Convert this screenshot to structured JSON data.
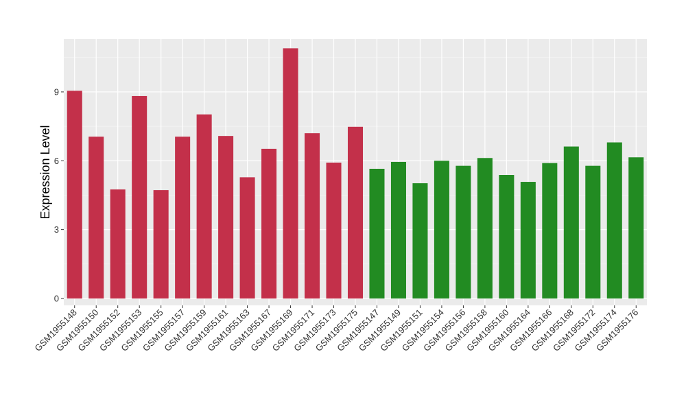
{
  "chart_data": {
    "type": "bar",
    "title": "",
    "xlabel": "",
    "ylabel": "Expression Level",
    "ylim": [
      -0.3,
      11.3
    ],
    "yticks": [
      0,
      3,
      6,
      9
    ],
    "grid": true,
    "legend": "none",
    "panel_background": "#EBEBEB",
    "colors": {
      "group_a": "#C3304A",
      "group_b": "#228B22"
    },
    "categories": [
      "GSM1955148",
      "GSM1955150",
      "GSM1955152",
      "GSM1955153",
      "GSM1955155",
      "GSM1955157",
      "GSM1955159",
      "GSM1955161",
      "GSM1955163",
      "GSM1955167",
      "GSM1955169",
      "GSM1955171",
      "GSM1955173",
      "GSM1955175",
      "GSM1955147",
      "GSM1955149",
      "GSM1955151",
      "GSM1955154",
      "GSM1955156",
      "GSM1955158",
      "GSM1955160",
      "GSM1955164",
      "GSM1955166",
      "GSM1955168",
      "GSM1955172",
      "GSM1955174",
      "GSM1955176"
    ],
    "values": [
      9.05,
      7.05,
      4.75,
      8.82,
      4.72,
      7.05,
      8.02,
      7.08,
      5.28,
      6.52,
      10.9,
      7.2,
      5.92,
      7.48,
      5.65,
      5.95,
      5.02,
      6.0,
      5.78,
      6.12,
      5.38,
      5.08,
      5.9,
      6.62,
      5.78,
      6.8,
      6.15
    ],
    "groups": [
      "a",
      "a",
      "a",
      "a",
      "a",
      "a",
      "a",
      "a",
      "a",
      "a",
      "a",
      "a",
      "a",
      "a",
      "b",
      "b",
      "b",
      "b",
      "b",
      "b",
      "b",
      "b",
      "b",
      "b",
      "b",
      "b",
      "b"
    ]
  }
}
